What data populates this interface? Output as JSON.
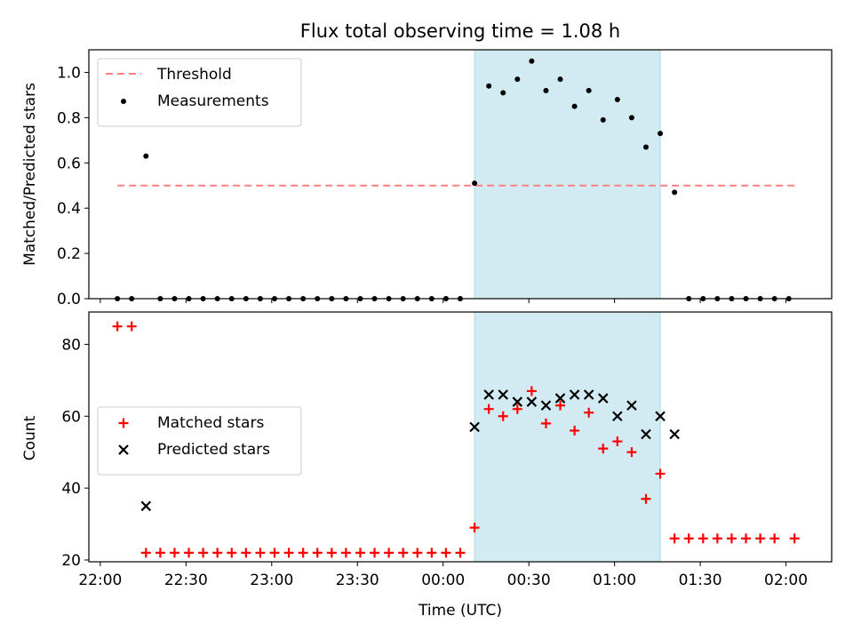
{
  "chart_data": {
    "title": "Flux total observing time = 1.08 h",
    "xlabel": "Time (UTC)",
    "x_ticks": [
      "22:00",
      "22:30",
      "23:00",
      "23:30",
      "00:00",
      "00:30",
      "01:00",
      "01:30",
      "02:00"
    ],
    "x_range": [
      "21:56",
      "02:16"
    ],
    "highlight_span": {
      "start": "00:11",
      "end": "01:16",
      "color": "#add8e6"
    },
    "panels": [
      {
        "type": "scatter",
        "ylabel": "Matched/Predicted stars",
        "ylim": [
          0,
          1.1
        ],
        "y_ticks": [
          "0.0",
          "0.2",
          "0.4",
          "0.6",
          "0.8",
          "1.0"
        ],
        "legend_position": "top-left",
        "threshold": {
          "name": "Threshold",
          "value": 0.5,
          "x_start": "22:06",
          "x_end": "02:03",
          "color": "#ff7f7f",
          "style": "dashed"
        },
        "series": [
          {
            "name": "Measurements",
            "marker": "dot",
            "color": "#000000",
            "points": [
              [
                "22:06",
                0.0
              ],
              [
                "22:11",
                0.0
              ],
              [
                "22:16",
                0.63
              ],
              [
                "22:21",
                0.0
              ],
              [
                "22:26",
                0.0
              ],
              [
                "22:31",
                0.0
              ],
              [
                "22:36",
                0.0
              ],
              [
                "22:41",
                0.0
              ],
              [
                "22:46",
                0.0
              ],
              [
                "22:51",
                0.0
              ],
              [
                "22:56",
                0.0
              ],
              [
                "23:01",
                0.0
              ],
              [
                "23:06",
                0.0
              ],
              [
                "23:11",
                0.0
              ],
              [
                "23:16",
                0.0
              ],
              [
                "23:21",
                0.0
              ],
              [
                "23:26",
                0.0
              ],
              [
                "23:31",
                0.0
              ],
              [
                "23:36",
                0.0
              ],
              [
                "23:41",
                0.0
              ],
              [
                "23:46",
                0.0
              ],
              [
                "23:51",
                0.0
              ],
              [
                "23:56",
                0.0
              ],
              [
                "00:01",
                0.0
              ],
              [
                "00:06",
                0.0
              ],
              [
                "00:11",
                0.51
              ],
              [
                "00:16",
                0.94
              ],
              [
                "00:21",
                0.91
              ],
              [
                "00:26",
                0.97
              ],
              [
                "00:31",
                1.05
              ],
              [
                "00:36",
                0.92
              ],
              [
                "00:41",
                0.97
              ],
              [
                "00:46",
                0.85
              ],
              [
                "00:51",
                0.92
              ],
              [
                "00:56",
                0.79
              ],
              [
                "01:01",
                0.88
              ],
              [
                "01:06",
                0.8
              ],
              [
                "01:11",
                0.67
              ],
              [
                "01:16",
                0.73
              ],
              [
                "01:21",
                0.47
              ],
              [
                "01:26",
                0.0
              ],
              [
                "01:31",
                0.0
              ],
              [
                "01:36",
                0.0
              ],
              [
                "01:41",
                0.0
              ],
              [
                "01:46",
                0.0
              ],
              [
                "01:51",
                0.0
              ],
              [
                "01:56",
                0.0
              ],
              [
                "02:01",
                0.0
              ]
            ]
          }
        ]
      },
      {
        "type": "scatter",
        "ylabel": "Count",
        "ylim": [
          19.5,
          89
        ],
        "y_ticks": [
          "20",
          "40",
          "60",
          "80"
        ],
        "legend_position": "center-left",
        "series": [
          {
            "name": "Matched stars",
            "marker": "plus",
            "color": "#ff0000",
            "points": [
              [
                "22:06",
                85
              ],
              [
                "22:11",
                85
              ],
              [
                "22:16",
                22
              ],
              [
                "22:21",
                22
              ],
              [
                "22:26",
                22
              ],
              [
                "22:31",
                22
              ],
              [
                "22:36",
                22
              ],
              [
                "22:41",
                22
              ],
              [
                "22:46",
                22
              ],
              [
                "22:51",
                22
              ],
              [
                "22:56",
                22
              ],
              [
                "23:01",
                22
              ],
              [
                "23:06",
                22
              ],
              [
                "23:11",
                22
              ],
              [
                "23:16",
                22
              ],
              [
                "23:21",
                22
              ],
              [
                "23:26",
                22
              ],
              [
                "23:31",
                22
              ],
              [
                "23:36",
                22
              ],
              [
                "23:41",
                22
              ],
              [
                "23:46",
                22
              ],
              [
                "23:51",
                22
              ],
              [
                "23:56",
                22
              ],
              [
                "00:01",
                22
              ],
              [
                "00:06",
                22
              ],
              [
                "00:11",
                29
              ],
              [
                "00:16",
                62
              ],
              [
                "00:21",
                60
              ],
              [
                "00:26",
                62
              ],
              [
                "00:31",
                67
              ],
              [
                "00:36",
                58
              ],
              [
                "00:41",
                63
              ],
              [
                "00:46",
                56
              ],
              [
                "00:51",
                61
              ],
              [
                "00:56",
                51
              ],
              [
                "01:01",
                53
              ],
              [
                "01:06",
                50
              ],
              [
                "01:11",
                37
              ],
              [
                "01:16",
                44
              ],
              [
                "01:21",
                26
              ],
              [
                "01:26",
                26
              ],
              [
                "01:31",
                26
              ],
              [
                "01:36",
                26
              ],
              [
                "01:41",
                26
              ],
              [
                "01:46",
                26
              ],
              [
                "01:51",
                26
              ],
              [
                "01:56",
                26
              ],
              [
                "02:03",
                26
              ]
            ]
          },
          {
            "name": "Predicted stars",
            "marker": "x",
            "color": "#000000",
            "points": [
              [
                "22:16",
                35
              ],
              [
                "00:11",
                57
              ],
              [
                "00:16",
                66
              ],
              [
                "00:21",
                66
              ],
              [
                "00:26",
                64
              ],
              [
                "00:31",
                64
              ],
              [
                "00:36",
                63
              ],
              [
                "00:41",
                65
              ],
              [
                "00:46",
                66
              ],
              [
                "00:51",
                66
              ],
              [
                "00:56",
                65
              ],
              [
                "01:01",
                60
              ],
              [
                "01:06",
                63
              ],
              [
                "01:11",
                55
              ],
              [
                "01:16",
                60
              ],
              [
                "01:21",
                55
              ]
            ]
          }
        ]
      }
    ]
  }
}
